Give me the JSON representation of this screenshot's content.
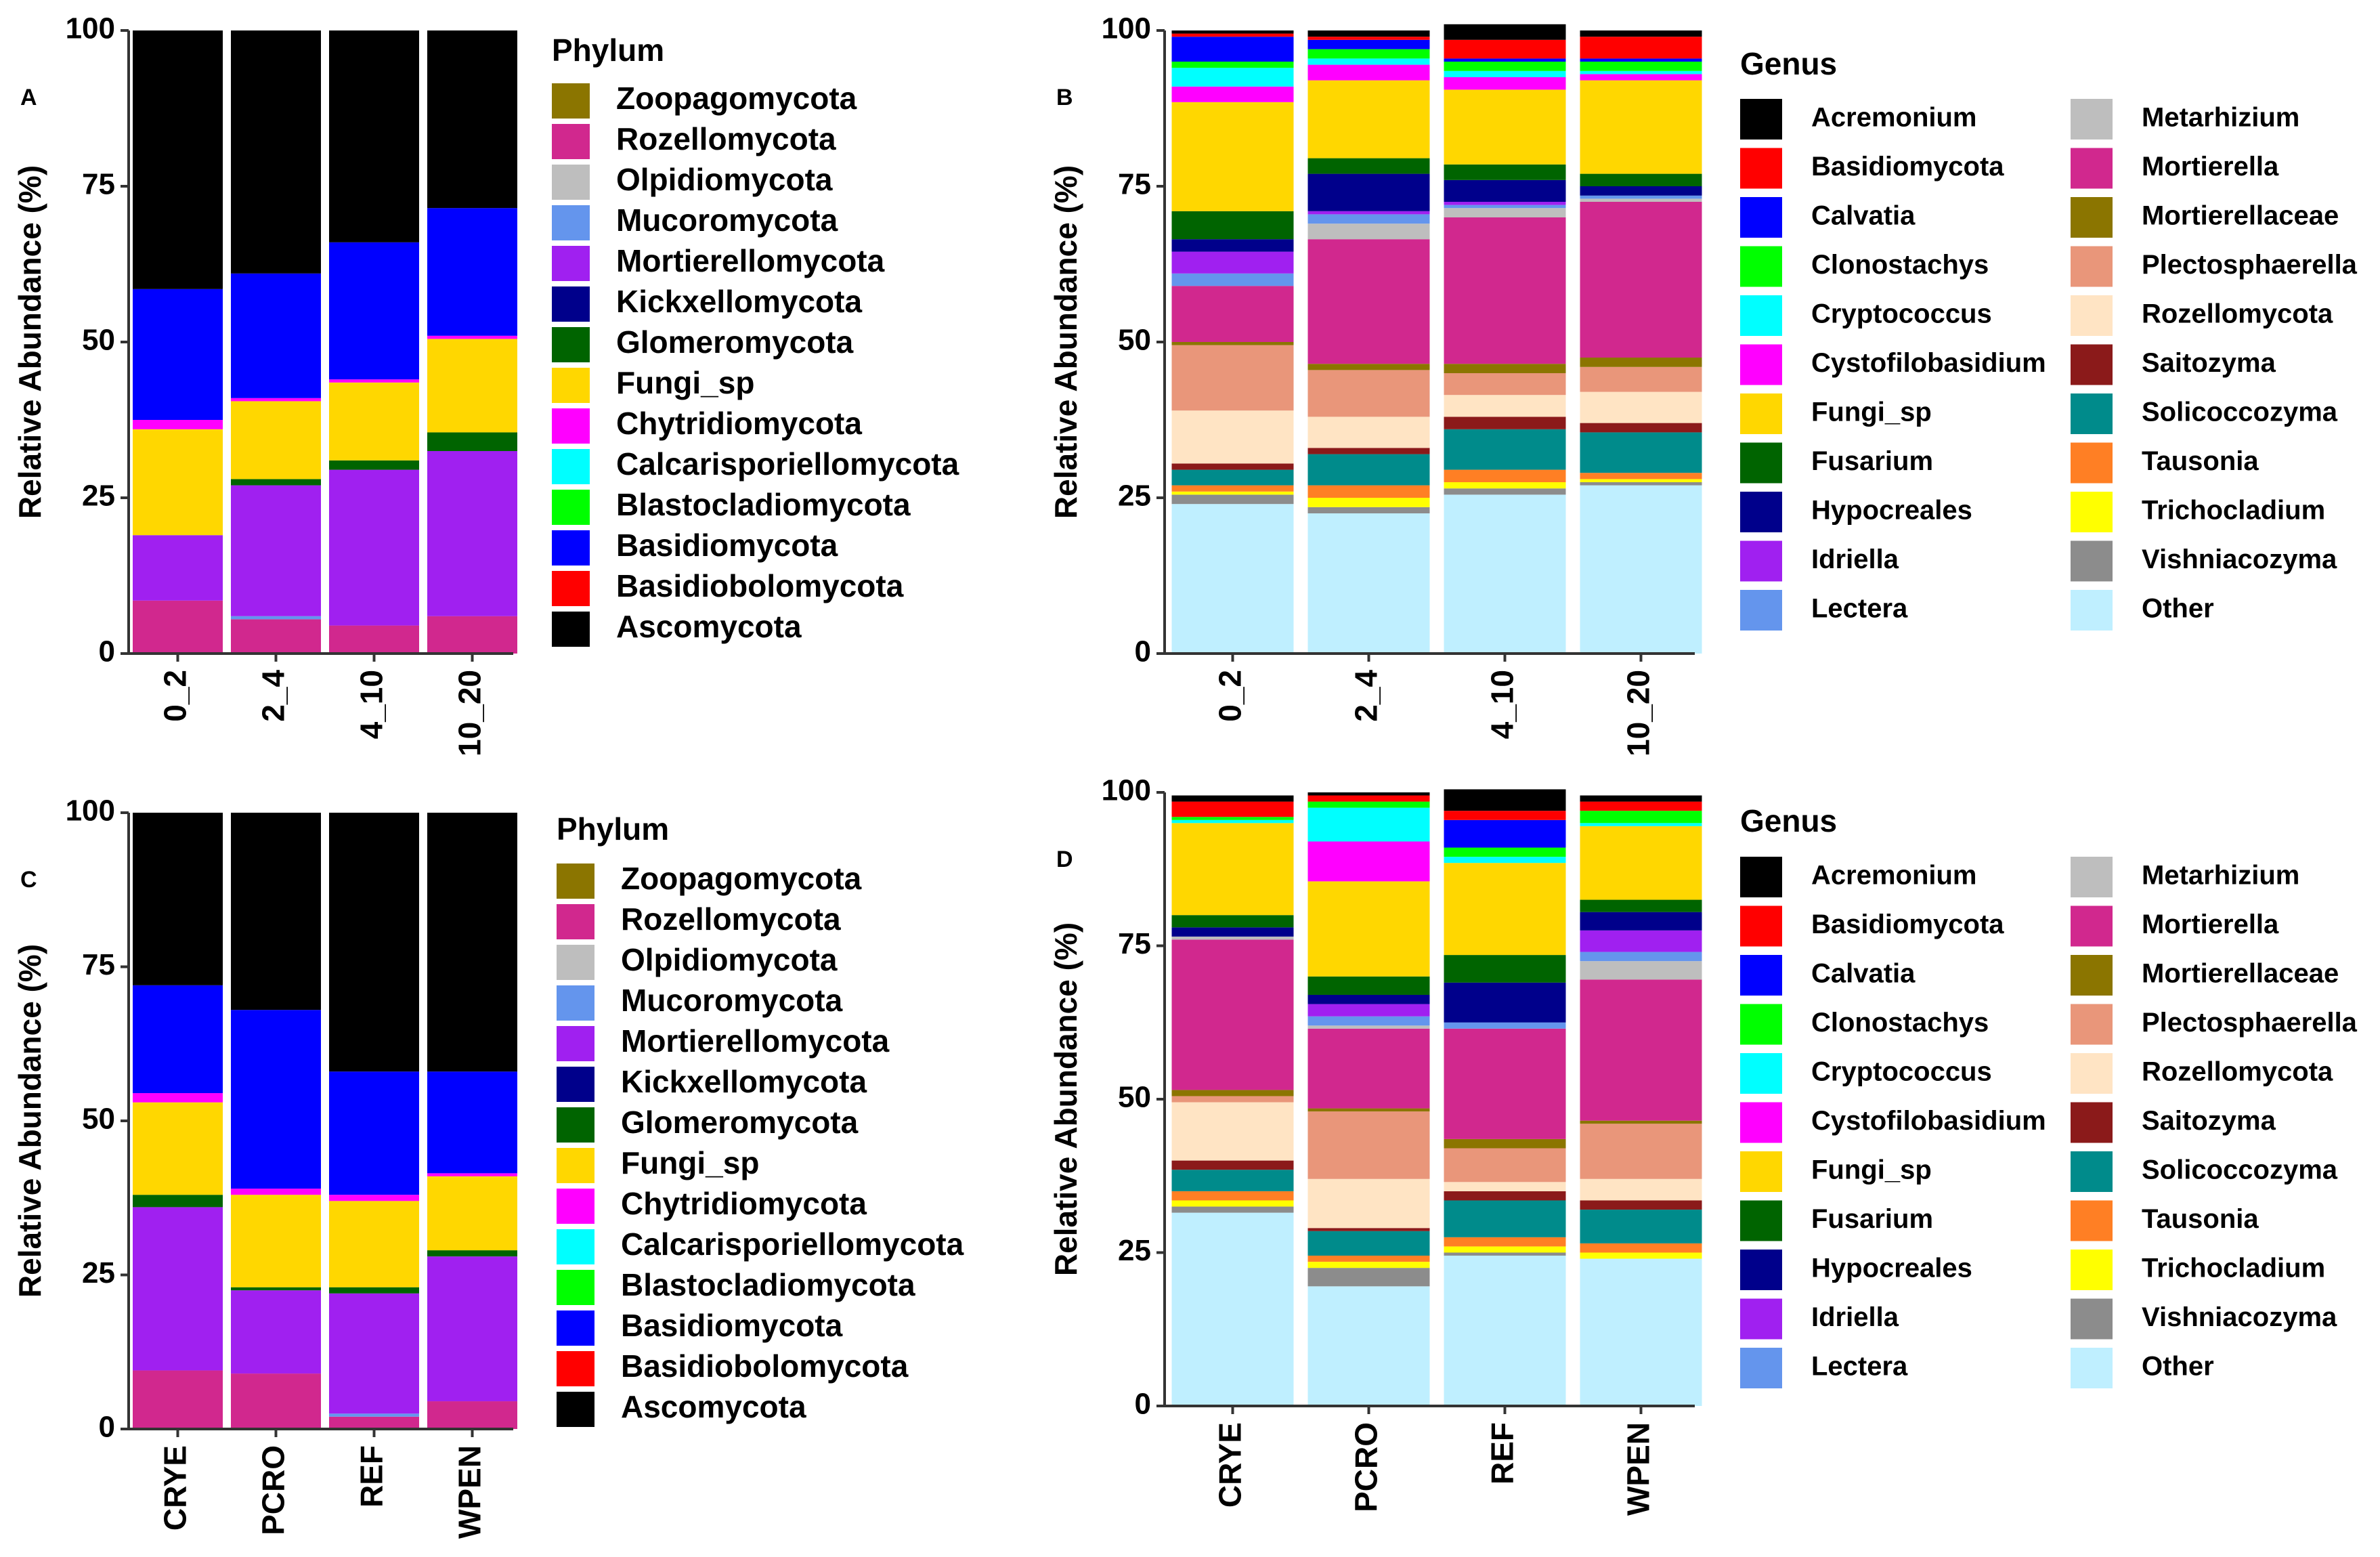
{
  "chart_data": [
    {
      "type": "bar",
      "stacked": true,
      "panel_label": "A",
      "ylabel": "Relative Abundance (%)",
      "ylim": [
        0,
        100
      ],
      "yticks": [
        0,
        25,
        50,
        75,
        100
      ],
      "categories": [
        "0_2",
        "2_4",
        "4_10",
        "10_20"
      ],
      "legend_title": "Phylum",
      "legend_order": [
        "Zoopagomycota",
        "Rozellomycota",
        "Olpidiomycota",
        "Mucoromycota",
        "Mortierellomycota",
        "Kickxellomycota",
        "Glomeromycota",
        "Fungi_sp",
        "Chytridiomycota",
        "Calcarisporiellomycota",
        "Blastocladiomycota",
        "Basidiomycota",
        "Basidiobolomycota",
        "Ascomycota"
      ],
      "series": [
        {
          "name": "Zoopagomycota",
          "color": "#8B7500",
          "values": [
            0,
            0,
            0,
            0
          ]
        },
        {
          "name": "Rozellomycota",
          "color": "#D1288E",
          "values": [
            8.5,
            5.5,
            4.5,
            6.0
          ]
        },
        {
          "name": "Olpidiomycota",
          "color": "#BEBEBE",
          "values": [
            0,
            0,
            0,
            0
          ]
        },
        {
          "name": "Mucoromycota",
          "color": "#6495ED",
          "values": [
            0,
            0.5,
            0,
            0
          ]
        },
        {
          "name": "Mortierellomycota",
          "color": "#A020F0",
          "values": [
            10.5,
            21.0,
            25.0,
            26.5
          ]
        },
        {
          "name": "Kickxellomycota",
          "color": "#00008B",
          "values": [
            0,
            0,
            0,
            0
          ]
        },
        {
          "name": "Glomeromycota",
          "color": "#006400",
          "values": [
            0,
            1.0,
            1.5,
            3.0
          ]
        },
        {
          "name": "Fungi_sp",
          "color": "#FFD700",
          "values": [
            17.0,
            12.5,
            12.5,
            15.0
          ]
        },
        {
          "name": "Chytridiomycota",
          "color": "#FF00FF",
          "values": [
            1.5,
            0.5,
            0.5,
            0.5
          ]
        },
        {
          "name": "Calcarisporiellomycota",
          "color": "#00FFFF",
          "values": [
            0,
            0,
            0,
            0
          ]
        },
        {
          "name": "Blastocladiomycota",
          "color": "#00FF00",
          "values": [
            0,
            0,
            0,
            0
          ]
        },
        {
          "name": "Basidiomycota",
          "color": "#0000FF",
          "values": [
            21.0,
            20.0,
            22.0,
            20.5
          ]
        },
        {
          "name": "Basidiobolomycota",
          "color": "#FF0000",
          "values": [
            0,
            0,
            0,
            0
          ]
        },
        {
          "name": "Ascomycota",
          "color": "#000000",
          "values": [
            41.5,
            39.0,
            34.0,
            28.5
          ]
        }
      ]
    },
    {
      "type": "bar",
      "stacked": true,
      "panel_label": "B",
      "ylabel": "Relative Abundance (%)",
      "ylim": [
        0,
        100
      ],
      "yticks": [
        0,
        25,
        50,
        75,
        100
      ],
      "categories": [
        "0_2",
        "2_4",
        "4_10",
        "10_20"
      ],
      "legend_title": "Genus",
      "legend_order": [
        "Acremonium",
        "Basidiomycota",
        "Calvatia",
        "Clonostachys",
        "Cryptococcus",
        "Cystofilobasidium",
        "Fungi_sp",
        "Fusarium",
        "Hypocreales",
        "Idriella",
        "Lectera",
        "Metarhizium",
        "Mortierella",
        "Mortierellaceae",
        "Plectosphaerella",
        "Rozellomycota",
        "Saitozyma",
        "Solicoccozyma",
        "Tausonia",
        "Trichocladium",
        "Vishniacozyma",
        "Other"
      ],
      "series": [
        {
          "name": "Other",
          "color": "#BFEFFF",
          "values": [
            24.0,
            22.5,
            25.5,
            27.0
          ]
        },
        {
          "name": "Vishniacozyma",
          "color": "#8C8C8C",
          "values": [
            1.5,
            1.0,
            1.0,
            0.5
          ]
        },
        {
          "name": "Trichocladium",
          "color": "#FFFF00",
          "values": [
            0.5,
            1.5,
            1.0,
            0.5
          ]
        },
        {
          "name": "Tausonia",
          "color": "#FF7F24",
          "values": [
            1.0,
            2.0,
            2.0,
            1.0
          ]
        },
        {
          "name": "Solicoccozyma",
          "color": "#008B8B",
          "values": [
            2.5,
            5.0,
            6.5,
            6.5
          ]
        },
        {
          "name": "Saitozyma",
          "color": "#8B1A1A",
          "values": [
            1.0,
            1.0,
            2.0,
            1.5
          ]
        },
        {
          "name": "Rozellomycota",
          "color": "#FFE4C4",
          "values": [
            8.5,
            5.0,
            3.5,
            5.0
          ]
        },
        {
          "name": "Plectosphaerella",
          "color": "#E9967A",
          "values": [
            10.5,
            7.5,
            3.5,
            4.0
          ]
        },
        {
          "name": "Mortierellaceae",
          "color": "#8B7500",
          "values": [
            0.5,
            1.0,
            1.5,
            1.5
          ]
        },
        {
          "name": "Mortierella",
          "color": "#D1288E",
          "values": [
            9.0,
            20.0,
            23.5,
            25.0
          ]
        },
        {
          "name": "Metarhizium",
          "color": "#BEBEBE",
          "values": [
            0,
            2.5,
            1.5,
            0.5
          ]
        },
        {
          "name": "Lectera",
          "color": "#6495ED",
          "values": [
            2.0,
            1.5,
            0.5,
            0.5
          ]
        },
        {
          "name": "Idriella",
          "color": "#A020F0",
          "values": [
            3.5,
            0.5,
            0.5,
            0
          ]
        },
        {
          "name": "Hypocreales",
          "color": "#00008B",
          "values": [
            2.0,
            6.0,
            3.5,
            1.5
          ]
        },
        {
          "name": "Fusarium",
          "color": "#006400",
          "values": [
            4.5,
            2.5,
            2.5,
            2.0
          ]
        },
        {
          "name": "Fungi_sp",
          "color": "#FFD700",
          "values": [
            17.5,
            12.5,
            12.0,
            15.0
          ]
        },
        {
          "name": "Cystofilobasidium",
          "color": "#FF00FF",
          "values": [
            2.5,
            2.5,
            2.0,
            1.0
          ]
        },
        {
          "name": "Cryptococcus",
          "color": "#00FFFF",
          "values": [
            3.0,
            1.0,
            1.0,
            0.5
          ]
        },
        {
          "name": "Clonostachys",
          "color": "#00FF00",
          "values": [
            1.0,
            1.5,
            1.5,
            1.5
          ]
        },
        {
          "name": "Calvatia",
          "color": "#0000FF",
          "values": [
            4.0,
            1.5,
            0.5,
            0.5
          ]
        },
        {
          "name": "Basidiomycota",
          "color": "#FF0000",
          "values": [
            0.5,
            0.5,
            3.0,
            3.5
          ]
        },
        {
          "name": "Acremonium",
          "color": "#000000",
          "values": [
            0.5,
            1.0,
            2.5,
            1.0
          ]
        }
      ]
    },
    {
      "type": "bar",
      "stacked": true,
      "panel_label": "C",
      "ylabel": "Relative Abundance (%)",
      "ylim": [
        0,
        100
      ],
      "yticks": [
        0,
        25,
        50,
        75,
        100
      ],
      "categories": [
        "CRYE",
        "PCRO",
        "REF",
        "WPEN"
      ],
      "legend_title": "Phylum",
      "legend_order": [
        "Zoopagomycota",
        "Rozellomycota",
        "Olpidiomycota",
        "Mucoromycota",
        "Mortierellomycota",
        "Kickxellomycota",
        "Glomeromycota",
        "Fungi_sp",
        "Chytridiomycota",
        "Calcarisporiellomycota",
        "Blastocladiomycota",
        "Basidiomycota",
        "Basidiobolomycota",
        "Ascomycota"
      ],
      "series": [
        {
          "name": "Zoopagomycota",
          "color": "#8B7500",
          "values": [
            0,
            0,
            0,
            0
          ]
        },
        {
          "name": "Rozellomycota",
          "color": "#D1288E",
          "values": [
            9.5,
            9.0,
            2.0,
            4.5
          ]
        },
        {
          "name": "Olpidiomycota",
          "color": "#BEBEBE",
          "values": [
            0,
            0,
            0,
            0
          ]
        },
        {
          "name": "Mucoromycota",
          "color": "#6495ED",
          "values": [
            0,
            0,
            0.5,
            0
          ]
        },
        {
          "name": "Mortierellomycota",
          "color": "#A020F0",
          "values": [
            26.5,
            13.5,
            19.5,
            23.5
          ]
        },
        {
          "name": "Kickxellomycota",
          "color": "#00008B",
          "values": [
            0,
            0,
            0,
            0
          ]
        },
        {
          "name": "Glomeromycota",
          "color": "#006400",
          "values": [
            2.0,
            0.5,
            1.0,
            1.0
          ]
        },
        {
          "name": "Fungi_sp",
          "color": "#FFD700",
          "values": [
            15.0,
            15.0,
            14.0,
            12.0
          ]
        },
        {
          "name": "Chytridiomycota",
          "color": "#FF00FF",
          "values": [
            1.5,
            1.0,
            1.0,
            0.5
          ]
        },
        {
          "name": "Calcarisporiellomycota",
          "color": "#00FFFF",
          "values": [
            0,
            0,
            0,
            0
          ]
        },
        {
          "name": "Blastocladiomycota",
          "color": "#00FF00",
          "values": [
            0,
            0,
            0,
            0
          ]
        },
        {
          "name": "Basidiomycota",
          "color": "#0000FF",
          "values": [
            17.5,
            29.0,
            20.0,
            16.5
          ]
        },
        {
          "name": "Basidiobolomycota",
          "color": "#FF0000",
          "values": [
            0,
            0,
            0,
            0
          ]
        },
        {
          "name": "Ascomycota",
          "color": "#000000",
          "values": [
            28.0,
            32.0,
            42.0,
            42.0
          ]
        }
      ]
    },
    {
      "type": "bar",
      "stacked": true,
      "panel_label": "D",
      "ylabel": "Relative Abundance (%)",
      "ylim": [
        0,
        100
      ],
      "yticks": [
        0,
        25,
        50,
        75,
        100
      ],
      "categories": [
        "CRYE",
        "PCRO",
        "REF",
        "WPEN"
      ],
      "legend_title": "Genus",
      "legend_order": [
        "Acremonium",
        "Basidiomycota",
        "Calvatia",
        "Clonostachys",
        "Cryptococcus",
        "Cystofilobasidium",
        "Fungi_sp",
        "Fusarium",
        "Hypocreales",
        "Idriella",
        "Lectera",
        "Metarhizium",
        "Mortierella",
        "Mortierellaceae",
        "Plectosphaerella",
        "Rozellomycota",
        "Saitozyma",
        "Solicoccozyma",
        "Tausonia",
        "Trichocladium",
        "Vishniacozyma",
        "Other"
      ],
      "series": [
        {
          "name": "Other",
          "color": "#BFEFFF",
          "values": [
            31.5,
            19.5,
            24.5,
            24.0
          ]
        },
        {
          "name": "Vishniacozyma",
          "color": "#8C8C8C",
          "values": [
            1.0,
            3.0,
            0.5,
            0
          ]
        },
        {
          "name": "Trichocladium",
          "color": "#FFFF00",
          "values": [
            1.0,
            1.0,
            1.0,
            1.0
          ]
        },
        {
          "name": "Tausonia",
          "color": "#FF7F24",
          "values": [
            1.5,
            1.0,
            1.5,
            1.5
          ]
        },
        {
          "name": "Solicoccozyma",
          "color": "#008B8B",
          "values": [
            3.5,
            4.0,
            6.0,
            5.5
          ]
        },
        {
          "name": "Saitozyma",
          "color": "#8B1A1A",
          "values": [
            1.5,
            0.5,
            1.5,
            1.5
          ]
        },
        {
          "name": "Rozellomycota",
          "color": "#FFE4C4",
          "values": [
            9.5,
            8.0,
            1.5,
            3.5
          ]
        },
        {
          "name": "Plectosphaerella",
          "color": "#E9967A",
          "values": [
            1.0,
            11.0,
            5.5,
            9.0
          ]
        },
        {
          "name": "Mortierellaceae",
          "color": "#8B7500",
          "values": [
            1.0,
            0.5,
            1.5,
            0.5
          ]
        },
        {
          "name": "Mortierella",
          "color": "#D1288E",
          "values": [
            24.5,
            13.0,
            18.0,
            23.0
          ]
        },
        {
          "name": "Metarhizium",
          "color": "#BEBEBE",
          "values": [
            0.5,
            0.5,
            0,
            3.0
          ]
        },
        {
          "name": "Lectera",
          "color": "#6495ED",
          "values": [
            0,
            1.5,
            1.0,
            1.5
          ]
        },
        {
          "name": "Idriella",
          "color": "#A020F0",
          "values": [
            0,
            2.0,
            0,
            3.5
          ]
        },
        {
          "name": "Hypocreales",
          "color": "#00008B",
          "values": [
            1.5,
            1.5,
            6.5,
            3.0
          ]
        },
        {
          "name": "Fusarium",
          "color": "#006400",
          "values": [
            2.0,
            3.0,
            4.5,
            2.0
          ]
        },
        {
          "name": "Fungi_sp",
          "color": "#FFD700",
          "values": [
            15.0,
            15.5,
            15.0,
            12.0
          ]
        },
        {
          "name": "Cystofilobasidium",
          "color": "#FF00FF",
          "values": [
            0,
            6.5,
            0,
            0
          ]
        },
        {
          "name": "Cryptococcus",
          "color": "#00FFFF",
          "values": [
            0.5,
            5.5,
            1.0,
            0.5
          ]
        },
        {
          "name": "Clonostachys",
          "color": "#00FF00",
          "values": [
            0.5,
            1.0,
            1.5,
            2.0
          ]
        },
        {
          "name": "Calvatia",
          "color": "#0000FF",
          "values": [
            0,
            0,
            4.5,
            0
          ]
        },
        {
          "name": "Basidiomycota",
          "color": "#FF0000",
          "values": [
            2.5,
            1.0,
            1.5,
            1.5
          ]
        },
        {
          "name": "Acremonium",
          "color": "#000000",
          "values": [
            1.0,
            0.5,
            3.5,
            1.0
          ]
        }
      ]
    }
  ]
}
